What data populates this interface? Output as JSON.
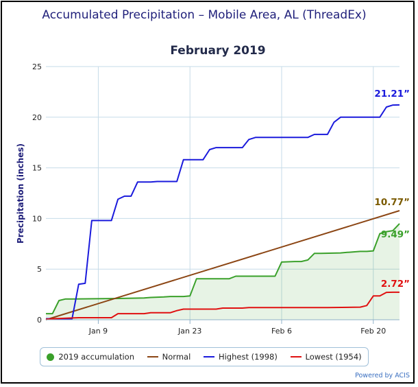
{
  "title": "Accumulated Precipitation – Mobile Area, AL (ThreadEx)",
  "credit": "Powered by ACIS",
  "chart_data": {
    "type": "line",
    "title": "February 2019",
    "ylabel": "Precipitation (inches)",
    "xlabel": "",
    "ylim": [
      0,
      25
    ],
    "yticks": [
      0,
      5,
      10,
      15,
      20,
      25
    ],
    "xlim": [
      "2019-01-01",
      "2019-02-24"
    ],
    "xticks": [
      {
        "date": "2019-01-09",
        "label": "Jan 9"
      },
      {
        "date": "2019-01-23",
        "label": "Jan 23"
      },
      {
        "date": "2019-02-06",
        "label": "Feb 6"
      },
      {
        "date": "2019-02-20",
        "label": "Feb 20"
      }
    ],
    "grid": true,
    "legend_position": "bottom",
    "series": [
      {
        "name": "2019 accumulation",
        "color": "#3aa02a",
        "fill": true,
        "marker": "circle",
        "end_label": "9.49”",
        "x": [
          "2019-01-01",
          "2019-01-02",
          "2019-01-03",
          "2019-01-04",
          "2019-01-05",
          "2019-01-12",
          "2019-01-16",
          "2019-01-17",
          "2019-01-19",
          "2019-01-20",
          "2019-01-21",
          "2019-01-22",
          "2019-01-23",
          "2019-01-24",
          "2019-01-25",
          "2019-01-27",
          "2019-01-28",
          "2019-01-29",
          "2019-01-30",
          "2019-02-01",
          "2019-02-02",
          "2019-02-03",
          "2019-02-04",
          "2019-02-05",
          "2019-02-06",
          "2019-02-08",
          "2019-02-09",
          "2019-02-10",
          "2019-02-11",
          "2019-02-12",
          "2019-02-15",
          "2019-02-16",
          "2019-02-17",
          "2019-02-18",
          "2019-02-19",
          "2019-02-20",
          "2019-02-21",
          "2019-02-22",
          "2019-02-23",
          "2019-02-24"
        ],
        "values": [
          0.6,
          0.6,
          1.9,
          2.05,
          2.05,
          2.1,
          2.15,
          2.2,
          2.25,
          2.3,
          2.3,
          2.3,
          2.35,
          4.05,
          4.05,
          4.05,
          4.05,
          4.05,
          4.3,
          4.3,
          4.3,
          4.3,
          4.3,
          4.3,
          5.7,
          5.75,
          5.75,
          5.9,
          6.55,
          6.55,
          6.6,
          6.65,
          6.7,
          6.75,
          6.75,
          6.8,
          8.5,
          8.7,
          8.8,
          9.49
        ]
      },
      {
        "name": "Normal",
        "color": "#8b4513",
        "end_label": "10.77”",
        "x": [
          "2019-01-01",
          "2019-02-24"
        ],
        "values": [
          0.0,
          10.77
        ]
      },
      {
        "name": "Highest (1998)",
        "color": "#1a1adc",
        "end_label": "21.21”",
        "x": [
          "2019-01-01",
          "2019-01-03",
          "2019-01-04",
          "2019-01-05",
          "2019-01-06",
          "2019-01-07",
          "2019-01-08",
          "2019-01-09",
          "2019-01-10",
          "2019-01-11",
          "2019-01-12",
          "2019-01-13",
          "2019-01-14",
          "2019-01-15",
          "2019-01-16",
          "2019-01-17",
          "2019-01-18",
          "2019-01-19",
          "2019-01-20",
          "2019-01-21",
          "2019-01-22",
          "2019-01-23",
          "2019-01-24",
          "2019-01-25",
          "2019-01-26",
          "2019-01-27",
          "2019-01-28",
          "2019-01-29",
          "2019-01-30",
          "2019-01-31",
          "2019-02-01",
          "2019-02-02",
          "2019-02-03",
          "2019-02-04",
          "2019-02-05",
          "2019-02-06",
          "2019-02-07",
          "2019-02-08",
          "2019-02-09",
          "2019-02-10",
          "2019-02-11",
          "2019-02-12",
          "2019-02-13",
          "2019-02-14",
          "2019-02-15",
          "2019-02-16",
          "2019-02-17",
          "2019-02-18",
          "2019-02-19",
          "2019-02-20",
          "2019-02-21",
          "2019-02-22",
          "2019-02-23",
          "2019-02-24"
        ],
        "values": [
          0.1,
          0.1,
          0.1,
          0.1,
          3.5,
          3.6,
          9.8,
          9.8,
          9.8,
          9.8,
          11.9,
          12.2,
          12.2,
          13.6,
          13.6,
          13.6,
          13.65,
          13.65,
          13.65,
          13.65,
          15.8,
          15.8,
          15.8,
          15.8,
          16.8,
          17.0,
          17.0,
          17.0,
          17.0,
          17.0,
          17.8,
          18.0,
          18.0,
          18.0,
          18.0,
          18.0,
          18.0,
          18.0,
          18.0,
          18.0,
          18.3,
          18.3,
          18.3,
          19.5,
          20.0,
          20.0,
          20.0,
          20.0,
          20.0,
          20.0,
          20.0,
          21.0,
          21.2,
          21.21
        ]
      },
      {
        "name": "Lowest (1954)",
        "color": "#e01010",
        "end_label": "2.72”",
        "x": [
          "2019-01-01",
          "2019-01-02",
          "2019-01-04",
          "2019-01-06",
          "2019-01-07",
          "2019-01-08",
          "2019-01-09",
          "2019-01-10",
          "2019-01-11",
          "2019-01-12",
          "2019-01-13",
          "2019-01-16",
          "2019-01-17",
          "2019-01-20",
          "2019-01-21",
          "2019-01-22",
          "2019-01-23",
          "2019-01-27",
          "2019-01-28",
          "2019-01-31",
          "2019-02-01",
          "2019-02-12",
          "2019-02-13",
          "2019-02-18",
          "2019-02-19",
          "2019-02-20",
          "2019-02-21",
          "2019-02-22",
          "2019-02-23",
          "2019-02-24"
        ],
        "values": [
          0.05,
          0.1,
          0.15,
          0.2,
          0.2,
          0.2,
          0.2,
          0.2,
          0.2,
          0.6,
          0.6,
          0.6,
          0.7,
          0.7,
          0.9,
          1.05,
          1.05,
          1.05,
          1.15,
          1.15,
          1.2,
          1.2,
          1.2,
          1.25,
          1.4,
          2.35,
          2.35,
          2.7,
          2.72,
          2.72
        ]
      }
    ]
  }
}
